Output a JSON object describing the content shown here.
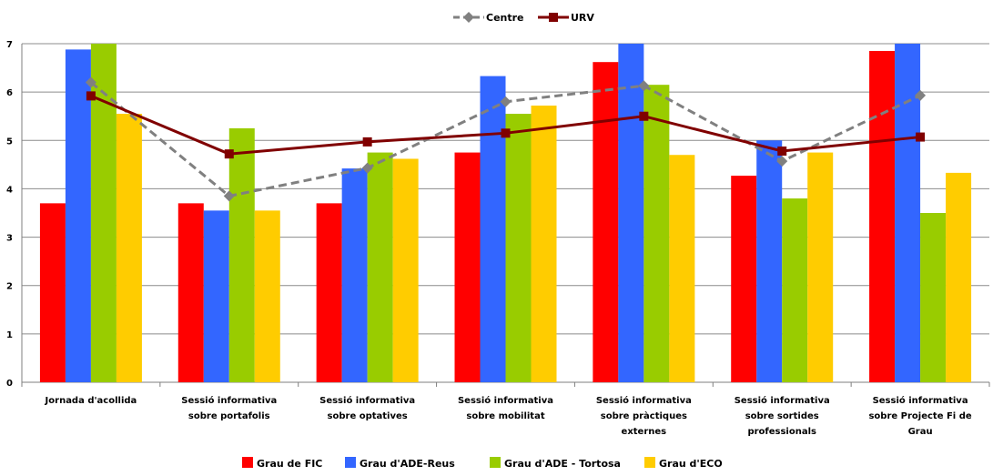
{
  "chart_data": {
    "type": "bar",
    "categories": [
      [
        "Jornada d'acollida"
      ],
      [
        "Sessió informativa",
        "sobre portafolis"
      ],
      [
        "Sessió informativa",
        "sobre optatives"
      ],
      [
        "Sessió informativa",
        "sobre mobilitat"
      ],
      [
        "Sessió informativa",
        "sobre pràctiques",
        "externes"
      ],
      [
        "Sessió informativa",
        "sobre sortides",
        "professionals"
      ],
      [
        "Sessió informativa",
        "sobre Projecte Fi de",
        "Grau"
      ]
    ],
    "series": [
      {
        "name": "Grau de FIC",
        "color": "#ff0000",
        "values": [
          3.7,
          3.7,
          3.7,
          4.75,
          6.62,
          4.27,
          6.85
        ]
      },
      {
        "name": "Grau d'ADE-Reus",
        "color": "#3366ff",
        "values": [
          6.88,
          3.55,
          4.42,
          6.33,
          7.0,
          5.0,
          7.0
        ]
      },
      {
        "name": "Grau d'ADE - Tortosa",
        "color": "#99cc00",
        "values": [
          7.0,
          5.25,
          4.75,
          5.55,
          6.15,
          3.8,
          3.5
        ]
      },
      {
        "name": "Grau d'ECO",
        "color": "#ffcc00",
        "values": [
          5.55,
          3.55,
          4.62,
          5.72,
          4.7,
          4.75,
          4.33
        ]
      }
    ],
    "lines": [
      {
        "name": "Centre",
        "color": "#808080",
        "dashed": true,
        "marker": "diamond",
        "values": [
          6.2,
          3.85,
          4.43,
          5.8,
          6.13,
          4.57,
          5.93
        ]
      },
      {
        "name": "URV",
        "color": "#800000",
        "dashed": false,
        "marker": "square",
        "values": [
          5.92,
          4.72,
          4.97,
          5.15,
          5.5,
          4.78,
          5.07
        ]
      }
    ],
    "y_ticks": [
      "0",
      "1",
      "2",
      "3",
      "4",
      "5",
      "6",
      "7"
    ],
    "ylim": [
      0,
      7
    ],
    "grid": true,
    "legend_top": "top-center",
    "legend_bottom": "bottom-center"
  }
}
